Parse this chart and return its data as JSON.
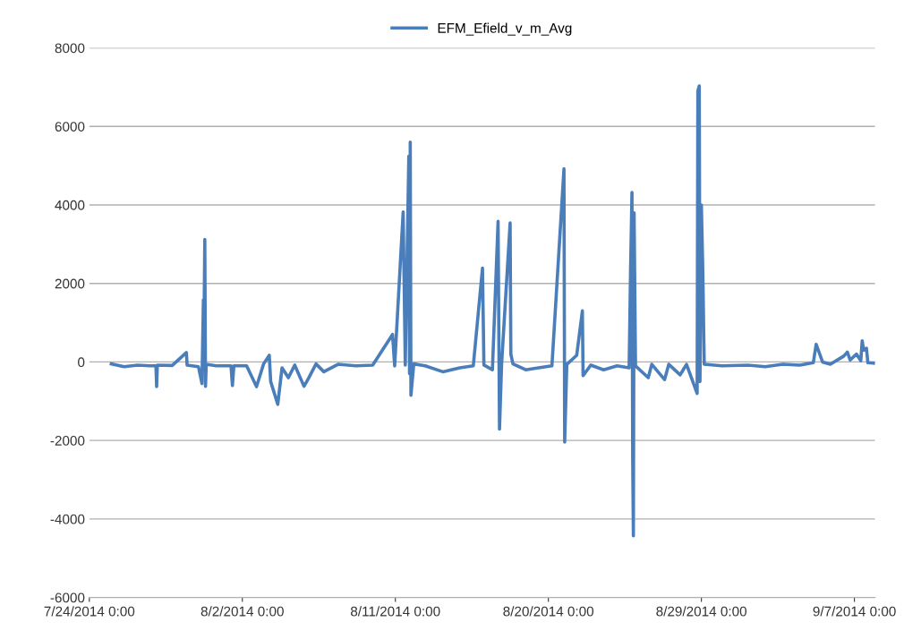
{
  "chart_data": {
    "type": "line",
    "legend": "top",
    "grid": "y",
    "marker": "none",
    "line_style": "solid",
    "xlim": [
      "2014-07-24",
      "2014-09-08T05:00"
    ],
    "xticks": [
      {
        "value": "2014-07-24",
        "label": "7/24/2014 0:00"
      },
      {
        "value": "2014-08-02",
        "label": "8/2/2014 0:00"
      },
      {
        "value": "2014-08-11",
        "label": "8/11/2014 0:00"
      },
      {
        "value": "2014-08-20",
        "label": "8/20/2014 0:00"
      },
      {
        "value": "2014-08-29",
        "label": "8/29/2014 0:00"
      },
      {
        "value": "2014-09-07",
        "label": "9/7/2014 0:00"
      }
    ],
    "ylim": [
      -6000,
      8000
    ],
    "yticks": [
      -6000,
      -4000,
      -2000,
      0,
      2000,
      4000,
      6000,
      8000
    ],
    "x": [
      "2014-07-25T07:00",
      "2014-07-26T01:00",
      "2014-07-26T20:00",
      "2014-07-27T14:00",
      "2014-07-27T22:00",
      "2014-07-27T23:00",
      "2014-07-28T00:00",
      "2014-07-28T21:00",
      "2014-07-29T17:00",
      "2014-07-29T18:00",
      "2014-07-30T10:00",
      "2014-07-30T15:00",
      "2014-07-30T17:00",
      "2014-07-30T18:00",
      "2014-07-30T19:00",
      "2014-07-30T20:00",
      "2014-07-30T21:00",
      "2014-07-31T11:00",
      "2014-08-01T08:00",
      "2014-08-01T10:00",
      "2014-08-01T12:00",
      "2014-08-02T06:00",
      "2014-08-02T20:00",
      "2014-08-03T06:00",
      "2014-08-03T14:00",
      "2014-08-03T16:00",
      "2014-08-04T02:00",
      "2014-08-04T08:00",
      "2014-08-04T17:00",
      "2014-08-05T02:00",
      "2014-08-05T15:00",
      "2014-08-05T21:00",
      "2014-08-06T08:00",
      "2014-08-06T19:00",
      "2014-08-07T15:00",
      "2014-08-08T16:00",
      "2014-08-09T16:00",
      "2014-08-10T20:00",
      "2014-08-10T23:00",
      "2014-08-11T11:00",
      "2014-08-11T14:00",
      "2014-08-11T19:00",
      "2014-08-11T20:00",
      "2014-08-11T21:00",
      "2014-08-11T22:00",
      "2014-08-12T02:00",
      "2014-08-12T18:00",
      "2014-08-13T19:00",
      "2014-08-14T19:00",
      "2014-08-15T14:00",
      "2014-08-16T03:00",
      "2014-08-16T05:00",
      "2014-08-16T17:00",
      "2014-08-17T01:00",
      "2014-08-17T03:00",
      "2014-08-17T06:00",
      "2014-08-17T18:00",
      "2014-08-17T19:00",
      "2014-08-17T22:00",
      "2014-08-18T16:00",
      "2014-08-19T10:00",
      "2014-08-20T05:00",
      "2014-08-20T22:00",
      "2014-08-20T23:00",
      "2014-08-21T02:00",
      "2014-08-21T16:00",
      "2014-08-22T00:00",
      "2014-08-22T01:00",
      "2014-08-22T12:00",
      "2014-08-23T06:00",
      "2014-08-24T01:00",
      "2014-08-24T18:00",
      "2014-08-24T20:00",
      "2014-08-24T22:00",
      "2014-08-24T23:00",
      "2014-08-25T00:00",
      "2014-08-25T01:00",
      "2014-08-25T03:00",
      "2014-08-25T21:00",
      "2014-08-26T02:00",
      "2014-08-26T20:00",
      "2014-08-27T02:00",
      "2014-08-27T18:00",
      "2014-08-28T03:00",
      "2014-08-28T18:00",
      "2014-08-28T19:00",
      "2014-08-28T21:00",
      "2014-08-28T22:00",
      "2014-08-29T00:00",
      "2014-08-29T02:00",
      "2014-08-29T04:00",
      "2014-08-30T05:00",
      "2014-08-31T18:00",
      "2014-09-01T18:00",
      "2014-09-02T19:00",
      "2014-09-03T19:00",
      "2014-09-04T14:00",
      "2014-09-04T18:00",
      "2014-09-05T03:00",
      "2014-09-05T14:00",
      "2014-09-06T09:00",
      "2014-09-06T14:00",
      "2014-09-06T18:00",
      "2014-09-07T03:00",
      "2014-09-07T09:00",
      "2014-09-07T11:00",
      "2014-09-07T13:00",
      "2014-09-07T17:00",
      "2014-09-07T19:00",
      "2014-09-08T04:00"
    ],
    "series": [
      {
        "name": "EFM_Efield_v_m_Avg",
        "color": "#4a7ebb",
        "values": [
          -50,
          -120,
          -80,
          -100,
          -100,
          -630,
          -80,
          -90,
          240,
          -80,
          -120,
          -550,
          1580,
          1200,
          3120,
          -620,
          -60,
          -100,
          -100,
          -600,
          -100,
          -100,
          -630,
          -50,
          170,
          -500,
          -1080,
          -150,
          -400,
          -80,
          -620,
          -430,
          -50,
          -250,
          -60,
          -100,
          -80,
          700,
          -100,
          3820,
          -80,
          5240,
          -300,
          5600,
          -850,
          -50,
          -100,
          -250,
          -150,
          -100,
          2390,
          -80,
          -200,
          3580,
          -1710,
          -50,
          3540,
          200,
          -50,
          -200,
          -150,
          -100,
          4920,
          -2040,
          -60,
          170,
          1300,
          -350,
          -80,
          -200,
          -100,
          -150,
          2300,
          4320,
          -2400,
          -4430,
          3800,
          -100,
          -400,
          -60,
          -450,
          -60,
          -330,
          -60,
          -800,
          6900,
          7030,
          -500,
          4000,
          2300,
          -60,
          -100,
          -80,
          -120,
          -60,
          -80,
          -20,
          450,
          0,
          -60,
          150,
          250,
          50,
          200,
          30,
          540,
          300,
          350,
          -20,
          -30
        ]
      }
    ]
  }
}
